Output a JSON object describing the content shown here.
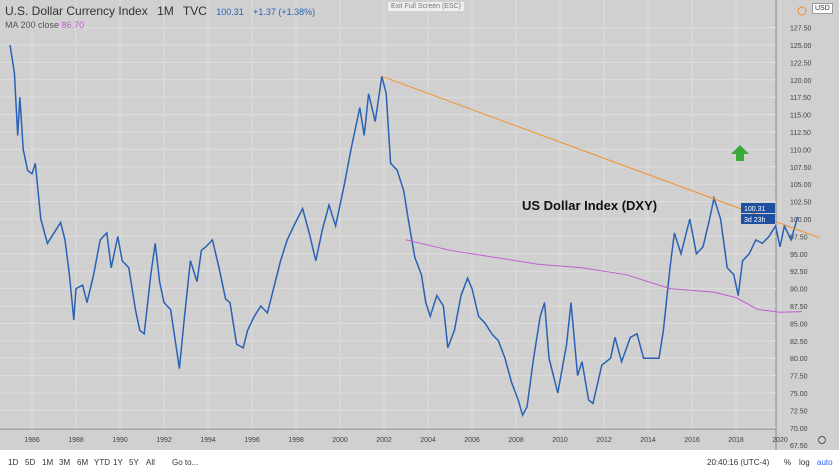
{
  "header": {
    "symbol": "U.S. Dollar Currency Index",
    "interval": "1M",
    "source": "TVC",
    "last": "100.31",
    "change": "+1.37 (+1.38%)",
    "ma_label": "MA 200 close",
    "ma_value": "86.70",
    "exit_fullscreen": "Exit Full Screen (ESC)",
    "currency": "USD"
  },
  "price_label": "100.31",
  "countdown": "3d 23h",
  "annotation": "US Dollar Index (DXY)",
  "bottom": {
    "timeframes": [
      "1D",
      "5D",
      "1M",
      "3M",
      "6M",
      "YTD",
      "1Y",
      "5Y",
      "All"
    ],
    "goto": "Go to...",
    "time": "20:40:16 (UTC-4)",
    "percent": "%",
    "log": "log",
    "auto": "auto"
  },
  "colors": {
    "price": "#2962b5",
    "trend": "#f5902a",
    "ma": "#c060d0",
    "arrow": "#3aa83a",
    "bg": "#d0d0d0"
  },
  "chart_data": {
    "type": "line",
    "title": "U.S. Dollar Currency Index",
    "ylim": [
      67.5,
      127.5
    ],
    "xlim": [
      1984.9,
      2021.8
    ],
    "yticks": [
      "127.50",
      "125.00",
      "122.50",
      "120.00",
      "117.50",
      "115.00",
      "112.50",
      "110.00",
      "107.50",
      "105.00",
      "102.50",
      "100.00",
      "97.50",
      "95.00",
      "92.50",
      "90.00",
      "87.50",
      "85.00",
      "82.50",
      "80.00",
      "77.50",
      "75.00",
      "72.50",
      "70.00",
      "67.50"
    ],
    "xticks": [
      "1986",
      "1988",
      "1990",
      "1992",
      "1994",
      "1996",
      "1998",
      "2000",
      "2002",
      "2004",
      "2006",
      "2008",
      "2010",
      "2012",
      "2014",
      "2016",
      "2018",
      "2020"
    ],
    "series": [
      {
        "name": "DXY",
        "points": [
          [
            1985.0,
            125
          ],
          [
            1985.2,
            121
          ],
          [
            1985.35,
            112
          ],
          [
            1985.45,
            117.5
          ],
          [
            1985.6,
            110
          ],
          [
            1985.8,
            107
          ],
          [
            1986.0,
            106.5
          ],
          [
            1986.15,
            108
          ],
          [
            1986.4,
            100
          ],
          [
            1986.7,
            96.5
          ],
          [
            1987.0,
            98
          ],
          [
            1987.3,
            99.5
          ],
          [
            1987.5,
            97
          ],
          [
            1987.7,
            92
          ],
          [
            1987.9,
            85.5
          ],
          [
            1988.0,
            90
          ],
          [
            1988.3,
            90.5
          ],
          [
            1988.5,
            88
          ],
          [
            1988.8,
            92
          ],
          [
            1989.1,
            97
          ],
          [
            1989.4,
            98
          ],
          [
            1989.6,
            93
          ],
          [
            1989.9,
            97.5
          ],
          [
            1990.1,
            94
          ],
          [
            1990.4,
            93
          ],
          [
            1990.7,
            87
          ],
          [
            1990.9,
            84
          ],
          [
            1991.1,
            83.5
          ],
          [
            1991.4,
            92
          ],
          [
            1991.6,
            96.5
          ],
          [
            1991.8,
            91
          ],
          [
            1992.0,
            88
          ],
          [
            1992.3,
            87
          ],
          [
            1992.7,
            78.5
          ],
          [
            1992.9,
            85
          ],
          [
            1993.2,
            94
          ],
          [
            1993.5,
            91
          ],
          [
            1993.7,
            95.5
          ],
          [
            1993.9,
            96
          ],
          [
            1994.2,
            97
          ],
          [
            1994.5,
            93
          ],
          [
            1994.8,
            88.5
          ],
          [
            1995.0,
            88
          ],
          [
            1995.3,
            82
          ],
          [
            1995.6,
            81.5
          ],
          [
            1995.8,
            84
          ],
          [
            1996.1,
            86
          ],
          [
            1996.4,
            87.5
          ],
          [
            1996.7,
            86.5
          ],
          [
            1996.9,
            89
          ],
          [
            1997.3,
            94
          ],
          [
            1997.6,
            97
          ],
          [
            1997.9,
            99
          ],
          [
            1998.3,
            101.5
          ],
          [
            1998.6,
            98
          ],
          [
            1998.9,
            94
          ],
          [
            1999.2,
            98.5
          ],
          [
            1999.5,
            102
          ],
          [
            1999.8,
            99
          ],
          [
            2000.2,
            105
          ],
          [
            2000.5,
            110
          ],
          [
            2000.9,
            116
          ],
          [
            2001.1,
            112
          ],
          [
            2001.3,
            118
          ],
          [
            2001.6,
            114
          ],
          [
            2001.9,
            120.5
          ],
          [
            2002.1,
            118
          ],
          [
            2002.3,
            108
          ],
          [
            2002.6,
            107
          ],
          [
            2002.9,
            104
          ],
          [
            2003.1,
            100
          ],
          [
            2003.4,
            94.5
          ],
          [
            2003.7,
            92
          ],
          [
            2003.9,
            88
          ],
          [
            2004.1,
            86
          ],
          [
            2004.4,
            89
          ],
          [
            2004.7,
            87.5
          ],
          [
            2004.9,
            81.5
          ],
          [
            2005.2,
            84
          ],
          [
            2005.5,
            89
          ],
          [
            2005.8,
            91.5
          ],
          [
            2006.0,
            90
          ],
          [
            2006.3,
            86
          ],
          [
            2006.6,
            85
          ],
          [
            2006.9,
            83.5
          ],
          [
            2007.2,
            82.5
          ],
          [
            2007.5,
            80
          ],
          [
            2007.8,
            76.5
          ],
          [
            2008.1,
            74
          ],
          [
            2008.3,
            71.8
          ],
          [
            2008.5,
            73
          ],
          [
            2008.8,
            80
          ],
          [
            2009.1,
            86
          ],
          [
            2009.3,
            88
          ],
          [
            2009.5,
            80
          ],
          [
            2009.9,
            75
          ],
          [
            2010.3,
            82
          ],
          [
            2010.5,
            88
          ],
          [
            2010.8,
            77.5
          ],
          [
            2011.0,
            79.5
          ],
          [
            2011.3,
            74
          ],
          [
            2011.5,
            73.5
          ],
          [
            2011.9,
            79
          ],
          [
            2012.3,
            80
          ],
          [
            2012.5,
            83
          ],
          [
            2012.8,
            79.5
          ],
          [
            2013.2,
            83
          ],
          [
            2013.5,
            83.5
          ],
          [
            2013.8,
            80
          ],
          [
            2014.2,
            80
          ],
          [
            2014.5,
            80
          ],
          [
            2014.7,
            84
          ],
          [
            2015.0,
            93
          ],
          [
            2015.2,
            98
          ],
          [
            2015.5,
            95
          ],
          [
            2015.9,
            100
          ],
          [
            2016.2,
            95
          ],
          [
            2016.5,
            96
          ],
          [
            2016.8,
            100
          ],
          [
            2017.0,
            103
          ],
          [
            2017.3,
            100
          ],
          [
            2017.6,
            93
          ],
          [
            2017.9,
            92
          ],
          [
            2018.1,
            89
          ],
          [
            2018.3,
            94
          ],
          [
            2018.6,
            95
          ],
          [
            2018.9,
            97
          ],
          [
            2019.2,
            96.5
          ],
          [
            2019.5,
            97.5
          ],
          [
            2019.8,
            99
          ],
          [
            2020.0,
            96
          ],
          [
            2020.2,
            99
          ],
          [
            2020.5,
            97
          ],
          [
            2020.8,
            100.3
          ]
        ]
      },
      {
        "name": "MA 200 close",
        "points": [
          [
            2003,
            97
          ],
          [
            2005,
            95.5
          ],
          [
            2007,
            94.5
          ],
          [
            2009,
            93.5
          ],
          [
            2011,
            93
          ],
          [
            2013,
            92
          ],
          [
            2015,
            90
          ],
          [
            2017,
            89.5
          ],
          [
            2018,
            88.7
          ],
          [
            2019,
            87
          ],
          [
            2020,
            86.6
          ],
          [
            2021,
            86.7
          ]
        ]
      },
      {
        "name": "Trend line",
        "points": [
          [
            2001.9,
            120.5
          ],
          [
            2021.8,
            97.3
          ]
        ]
      }
    ]
  }
}
